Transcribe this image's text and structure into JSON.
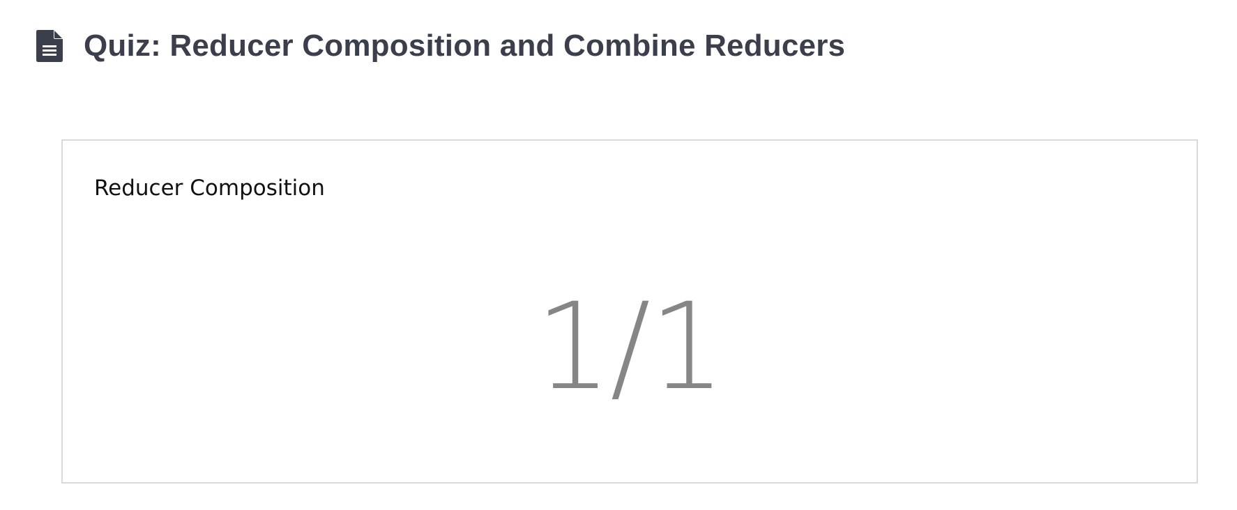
{
  "header": {
    "icon": "document-icon",
    "title": "Quiz: Reducer Composition and Combine Reducers"
  },
  "result_card": {
    "label": "Reducer Composition",
    "score": "1/1"
  },
  "colors": {
    "title": "#3b3f4b",
    "score": "#868686",
    "card_border": "#d9d9d9"
  }
}
